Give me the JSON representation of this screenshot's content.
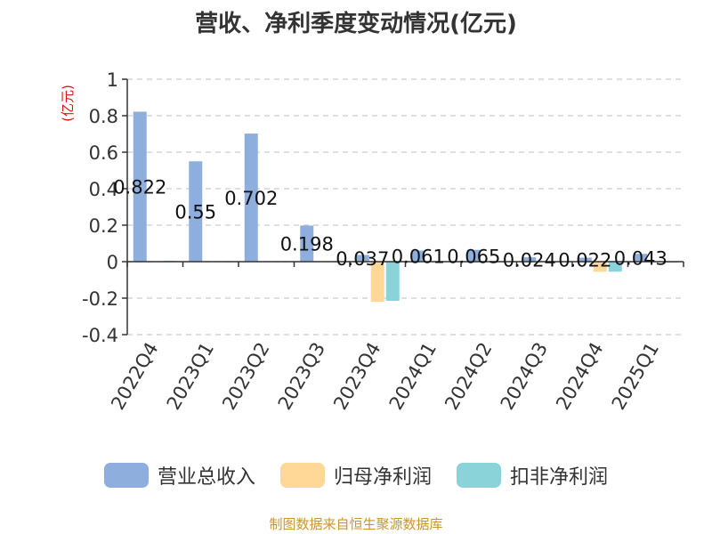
{
  "chart_data": {
    "type": "bar",
    "title": "营收、净利季度变动情况(亿元)",
    "unit_label": "(亿元)",
    "categories": [
      "2022Q4",
      "2023Q1",
      "2023Q2",
      "2023Q3",
      "2023Q4",
      "2024Q1",
      "2024Q2",
      "2024Q3",
      "2024Q4",
      "2025Q1"
    ],
    "series": [
      {
        "name": "营业总收入",
        "color": "#8eafdd",
        "values": [
          0.822,
          0.55,
          0.702,
          0.198,
          0.037,
          0.061,
          0.065,
          0.024,
          0.022,
          0.043
        ]
      },
      {
        "name": "归母净利润",
        "color": "#ffd897",
        "values": [
          0.0,
          0.0,
          0.0,
          0.0,
          -0.22,
          0.0,
          0.0,
          0.0,
          -0.055,
          0.0
        ]
      },
      {
        "name": "扣非净利润",
        "color": "#8ad3d8",
        "values": [
          0.005,
          0.0,
          0.0,
          0.0,
          -0.215,
          0.0,
          0.0,
          0.0,
          -0.055,
          -0.003
        ]
      }
    ],
    "data_labels": [
      "0.822",
      "0.55",
      "0.702",
      "0.198",
      "0.037",
      "0.061",
      "0.065",
      "0.024",
      "0.022",
      "0.043"
    ],
    "y_ticks": [
      "1",
      "0.8",
      "0.6",
      "0.4",
      "0.2",
      "0",
      "-0.2",
      "-0.4"
    ],
    "ylim": [
      -0.4,
      1
    ],
    "grid": true,
    "legend_position": "bottom"
  },
  "footer": {
    "source": "制图数据来自恒生聚源数据库"
  }
}
